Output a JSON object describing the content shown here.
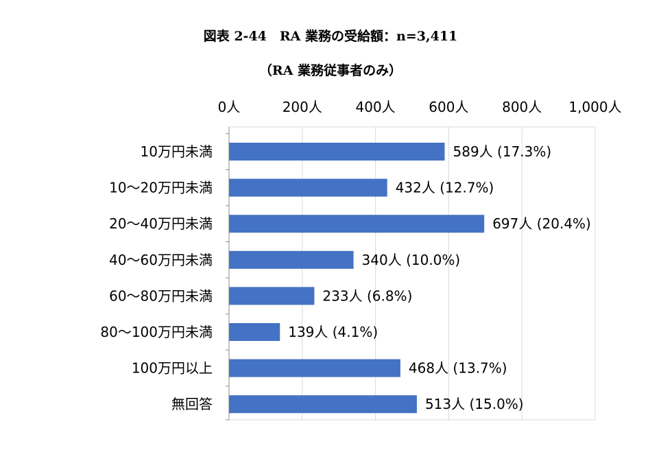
{
  "header": {
    "title": "図表 2-44　RA 業務の受給額：n=3,411",
    "subtitle": "（RA 業務従事者のみ）"
  },
  "chart_data": {
    "type": "bar",
    "orientation": "horizontal",
    "axis_position": "top",
    "xlim": [
      0,
      1000
    ],
    "xticks": [
      0,
      200,
      400,
      600,
      800,
      1000
    ],
    "xtick_labels": [
      "0人",
      "200人",
      "400人",
      "600人",
      "800人",
      "1,000人"
    ],
    "grid": true,
    "bar_color": "#4472C4",
    "categories": [
      "10万円未満",
      "10～20万円未満",
      "20～40万円未満",
      "40～60万円未満",
      "60～80万円未満",
      "80～100万円未満",
      "100万円以上",
      "無回答"
    ],
    "values": [
      589,
      432,
      697,
      340,
      233,
      139,
      468,
      513
    ],
    "data_labels": [
      "589人 (17.3%)",
      "432人 (12.7%)",
      "697人 (20.4%)",
      "340人 (10.0%)",
      "233人 (6.8%)",
      "139人 (4.1%)",
      "468人 (13.7%)",
      "513人 (15.0%)"
    ]
  }
}
